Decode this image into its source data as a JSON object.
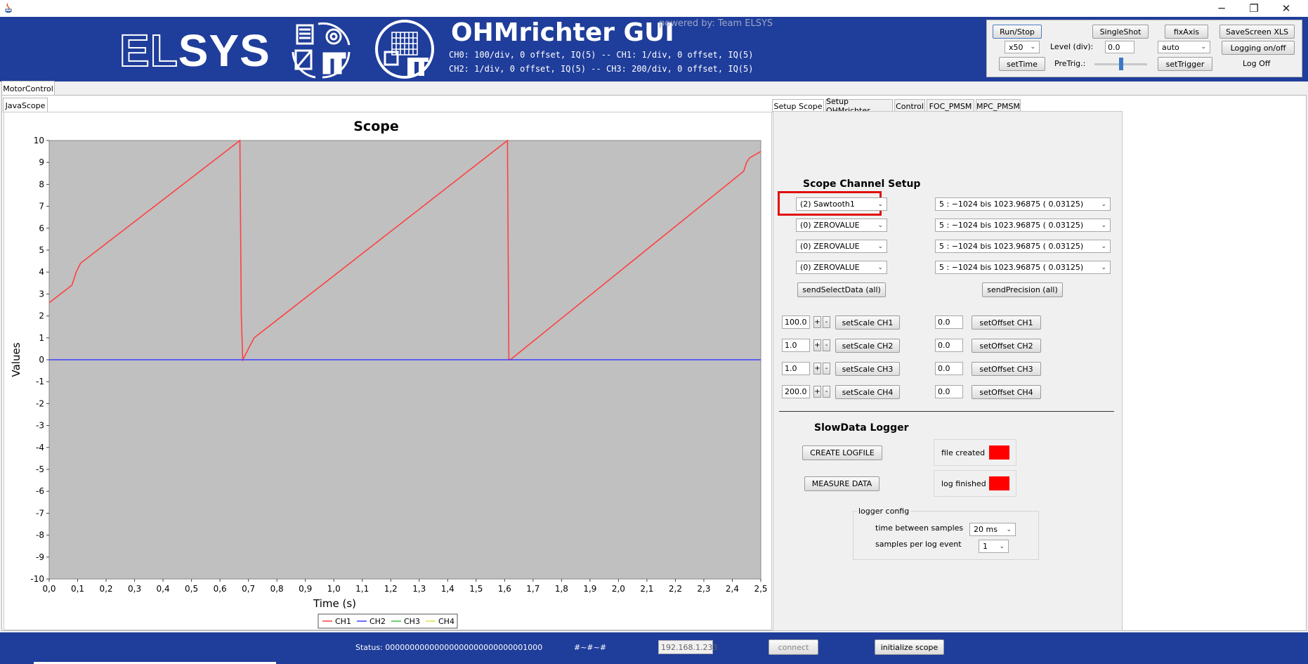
{
  "window": {
    "java_icon": "java-icon",
    "minimize": "─",
    "restore": "❐",
    "close": "✕"
  },
  "banner": {
    "logo_text_outline": "EL",
    "logo_text_solid": "SYS",
    "title": "OHMrichter GUI",
    "powered_by": "powered by: Team ELSYS",
    "info_line1": "CH0: 100/div, 0 offset, IQ(5) -- CH1: 1/div, 0 offset, IQ(5)",
    "info_line2": "CH2: 1/div, 0 offset, IQ(5) -- CH3: 200/div, 0 offset, IQ(5)"
  },
  "controls": {
    "run_stop": "Run/Stop",
    "single_shot": "SingleShot",
    "fix_axis": "fixAxis",
    "save_screen": "SaveScreen XLS",
    "zoom_value": "x50",
    "level_label": "Level (div):",
    "level_value": "0.0",
    "trigger_mode": "auto",
    "logging": "Logging on/off",
    "set_time": "setTime",
    "pretrig_label": "PreTrig.:",
    "pretrig_fraction": 0.5,
    "set_trigger": "setTrigger",
    "log_status": "Log Off"
  },
  "outer_tabs": {
    "motor_control": "MotorControl"
  },
  "inner_tabs": {
    "java_scope": "JavaScope"
  },
  "right_tabs": [
    "Setup Scope",
    "Setup OHMrichter",
    "Control",
    "FOC_PMSM",
    "MPC_PMSM"
  ],
  "chart_data": {
    "type": "line",
    "title": "Scope",
    "xlabel": "Time (s)",
    "ylabel": "Values",
    "xlim": [
      0,
      2.5
    ],
    "ylim": [
      -10,
      10
    ],
    "x_ticks": [
      "0,0",
      "0,1",
      "0,2",
      "0,3",
      "0,4",
      "0,5",
      "0,6",
      "0,7",
      "0,8",
      "0,9",
      "1,0",
      "1,1",
      "1,2",
      "1,3",
      "1,4",
      "1,5",
      "1,6",
      "1,7",
      "1,8",
      "1,9",
      "2,0",
      "2,1",
      "2,2",
      "2,3",
      "2,4",
      "2,5"
    ],
    "y_ticks": [
      "10",
      "9",
      "8",
      "7",
      "6",
      "5",
      "4",
      "3",
      "2",
      "1",
      "0",
      "-1",
      "-2",
      "-3",
      "-4",
      "-5",
      "-6",
      "-7",
      "-8",
      "-9",
      "-10"
    ],
    "grid": false,
    "legend_position": "bottom",
    "series": [
      {
        "name": "CH1",
        "color": "#ff4040",
        "x": [
          0.0,
          0.08,
          0.095,
          0.11,
          0.67,
          0.675,
          0.68,
          0.7,
          0.72,
          1.61,
          1.615,
          1.62,
          2.44,
          2.45,
          2.46,
          2.5
        ],
        "y": [
          2.6,
          3.4,
          4.0,
          4.4,
          10.0,
          2.0,
          0.0,
          0.5,
          1.0,
          10.0,
          0.0,
          0.0,
          8.6,
          9.0,
          9.2,
          9.5
        ]
      },
      {
        "name": "CH2",
        "color": "#4040ff",
        "x": [
          0.0,
          2.5
        ],
        "y": [
          0,
          0
        ]
      },
      {
        "name": "CH3",
        "color": "#40c040",
        "x": [],
        "y": []
      },
      {
        "name": "CH4",
        "color": "#e0e040",
        "x": [],
        "y": []
      }
    ]
  },
  "setup": {
    "channel_setup_title": "Scope Channel Setup",
    "channels": [
      {
        "signal": "(2) Sawtooth1",
        "precision": "5 :  −1024 bis 1023.96875  ( 0.03125)"
      },
      {
        "signal": "(0) ZEROVALUE",
        "precision": "5 :  −1024 bis 1023.96875  ( 0.03125)"
      },
      {
        "signal": "(0) ZEROVALUE",
        "precision": "5 :  −1024 bis 1023.96875  ( 0.03125)"
      },
      {
        "signal": "(0) ZEROVALUE",
        "precision": "5 :  −1024 bis 1023.96875  ( 0.03125)"
      }
    ],
    "send_select": "sendSelectData (all)",
    "send_precision": "sendPrecision (all)",
    "scales": [
      {
        "value": "100.0",
        "button": "setScale CH1",
        "offset": "0.0",
        "offset_button": "setOffset CH1"
      },
      {
        "value": "1.0",
        "button": "setScale CH2",
        "offset": "0.0",
        "offset_button": "setOffset CH2"
      },
      {
        "value": "1.0",
        "button": "setScale CH3",
        "offset": "0.0",
        "offset_button": "setOffset CH3"
      },
      {
        "value": "200.0",
        "button": "setScale CH4",
        "offset": "0.0",
        "offset_button": "setOffset CH4"
      }
    ],
    "plus": "+",
    "minus": "-"
  },
  "logger": {
    "title": "SlowData Logger",
    "create_logfile": "CREATE LOGFILE",
    "measure_data": "MEASURE DATA",
    "file_created": "file created",
    "log_finished": "log finished",
    "indicator_color": "#ff0000",
    "config_title": "logger config",
    "time_between_label": "time between samples",
    "time_between_value": "20 ms",
    "samples_label": "samples per log event",
    "samples_value": "1"
  },
  "statusbar": {
    "status": "Status: 00000000000000000000000000001000",
    "separator": "#~#~#",
    "ip": "192.168.1.233",
    "connect": "connect",
    "initialize": "initialize scope"
  }
}
